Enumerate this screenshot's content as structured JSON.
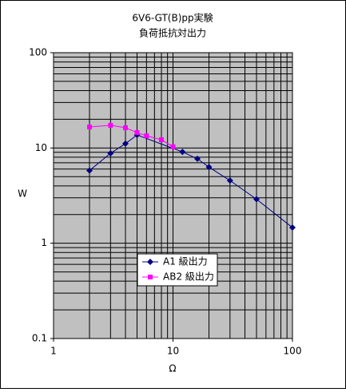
{
  "chart_data": {
    "type": "line",
    "title": "6V6-GT(B)pp実験",
    "subtitle": "負荷抵抗対出力",
    "x_label": "Ω",
    "y_label": "W",
    "log_x": true,
    "log_y": true,
    "grid": true,
    "xlim": [
      1,
      100
    ],
    "xticks": [
      1,
      10,
      100
    ],
    "ylim": [
      0.1,
      100
    ],
    "yticks": [
      0.1,
      1,
      10,
      100
    ],
    "series": [
      {
        "name": "A1 級出力",
        "color": "#000080",
        "marker": "diamond",
        "x": [
          2,
          3,
          4,
          5,
          12,
          16,
          20,
          30,
          50,
          100
        ],
        "values": [
          5.8,
          8.8,
          11.1,
          13.7,
          9.1,
          7.7,
          6.3,
          4.55,
          2.9,
          1.46
        ]
      },
      {
        "name": "AB2 級出力",
        "color": "#ff00ff",
        "marker": "square",
        "x": [
          2,
          3,
          4,
          5,
          6,
          8,
          10
        ],
        "values": [
          16.6,
          17.3,
          16.3,
          14.5,
          13.4,
          12.2,
          10.3
        ]
      }
    ]
  }
}
